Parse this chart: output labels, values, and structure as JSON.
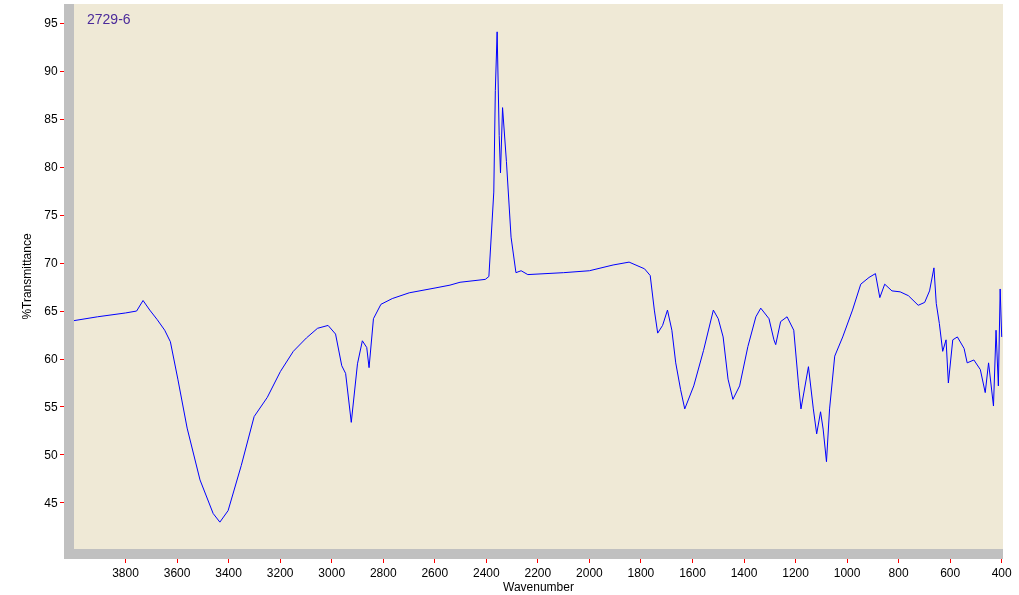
{
  "chart_data": {
    "type": "line",
    "xlabel": "Wavenumber",
    "ylabel": "%Transmittance",
    "annotations": [
      "2729-6"
    ],
    "xlim": [
      4000,
      395
    ],
    "ylim": [
      40.2,
      97
    ],
    "xticks": [
      3800,
      3600,
      3400,
      3200,
      3000,
      2800,
      2600,
      2400,
      2200,
      2000,
      1800,
      1600,
      1400,
      1200,
      1000,
      800,
      600,
      400
    ],
    "yticks": [
      45,
      50,
      55,
      60,
      65,
      70,
      75,
      80,
      85,
      90,
      95
    ],
    "marker": "none",
    "line_style": "solid",
    "series": [
      {
        "color": "#0000ff",
        "x": [
          4000,
          3909,
          3800,
          3757,
          3732,
          3706,
          3677,
          3648,
          3626,
          3597,
          3561,
          3511,
          3460,
          3434,
          3402,
          3351,
          3301,
          3250,
          3199,
          3149,
          3098,
          3055,
          3014,
          2985,
          2961,
          2946,
          2924,
          2900,
          2881,
          2864,
          2855,
          2838,
          2809,
          2765,
          2699,
          2599,
          2541,
          2502,
          2404,
          2390,
          2371,
          2365,
          2358,
          2350,
          2345,
          2337,
          2322,
          2304,
          2285,
          2265,
          2239,
          2100,
          2000,
          1908,
          1846,
          1786,
          1764,
          1748,
          1735,
          1716,
          1697,
          1680,
          1665,
          1646,
          1630,
          1595,
          1557,
          1519,
          1500,
          1481,
          1462,
          1443,
          1417,
          1385,
          1354,
          1335,
          1303,
          1284,
          1277,
          1258,
          1233,
          1207,
          1188,
          1179,
          1150,
          1131,
          1118,
          1103,
          1093,
          1080,
          1068,
          1048,
          1017,
          979,
          947,
          915,
          890,
          873,
          854,
          826,
          794,
          762,
          724,
          699,
          680,
          663,
          654,
          642,
          629,
          616,
          607,
          590,
          572,
          546,
          534,
          508,
          483,
          464,
          451,
          432,
          422,
          413,
          406,
          400
        ],
        "values": [
          64.0,
          64.4,
          64.8,
          65.0,
          66.1,
          65.1,
          64.1,
          63.0,
          61.8,
          57.9,
          52.8,
          47.4,
          43.9,
          43.0,
          44.2,
          48.9,
          54.0,
          56.0,
          58.7,
          60.8,
          62.2,
          63.2,
          63.5,
          62.6,
          59.3,
          58.5,
          53.4,
          59.5,
          61.9,
          61.2,
          59.1,
          64.2,
          65.7,
          66.3,
          66.9,
          67.4,
          67.7,
          68.0,
          68.3,
          68.6,
          77.4,
          88.0,
          94.1,
          83.3,
          79.4,
          86.2,
          80.6,
          72.7,
          69.0,
          69.2,
          68.8,
          69.0,
          69.2,
          69.8,
          70.1,
          69.4,
          68.7,
          65.1,
          62.7,
          63.5,
          65.1,
          63.0,
          59.6,
          56.8,
          54.8,
          57.2,
          60.9,
          65.1,
          64.2,
          62.3,
          57.9,
          55.8,
          57.2,
          61.3,
          64.4,
          65.3,
          64.2,
          62.0,
          61.5,
          63.9,
          64.4,
          63.0,
          57.2,
          54.8,
          59.2,
          54.8,
          52.2,
          54.5,
          52.7,
          49.3,
          54.8,
          60.3,
          62.3,
          65.1,
          67.8,
          68.5,
          68.9,
          66.4,
          67.8,
          67.1,
          67.0,
          66.6,
          65.6,
          65.9,
          67.1,
          69.5,
          65.8,
          63.7,
          60.8,
          62.0,
          57.5,
          62.0,
          62.3,
          61.1,
          59.6,
          59.9,
          58.9,
          56.5,
          59.6,
          55.1,
          63.0,
          57.2,
          67.3,
          62.3
        ]
      }
    ]
  }
}
